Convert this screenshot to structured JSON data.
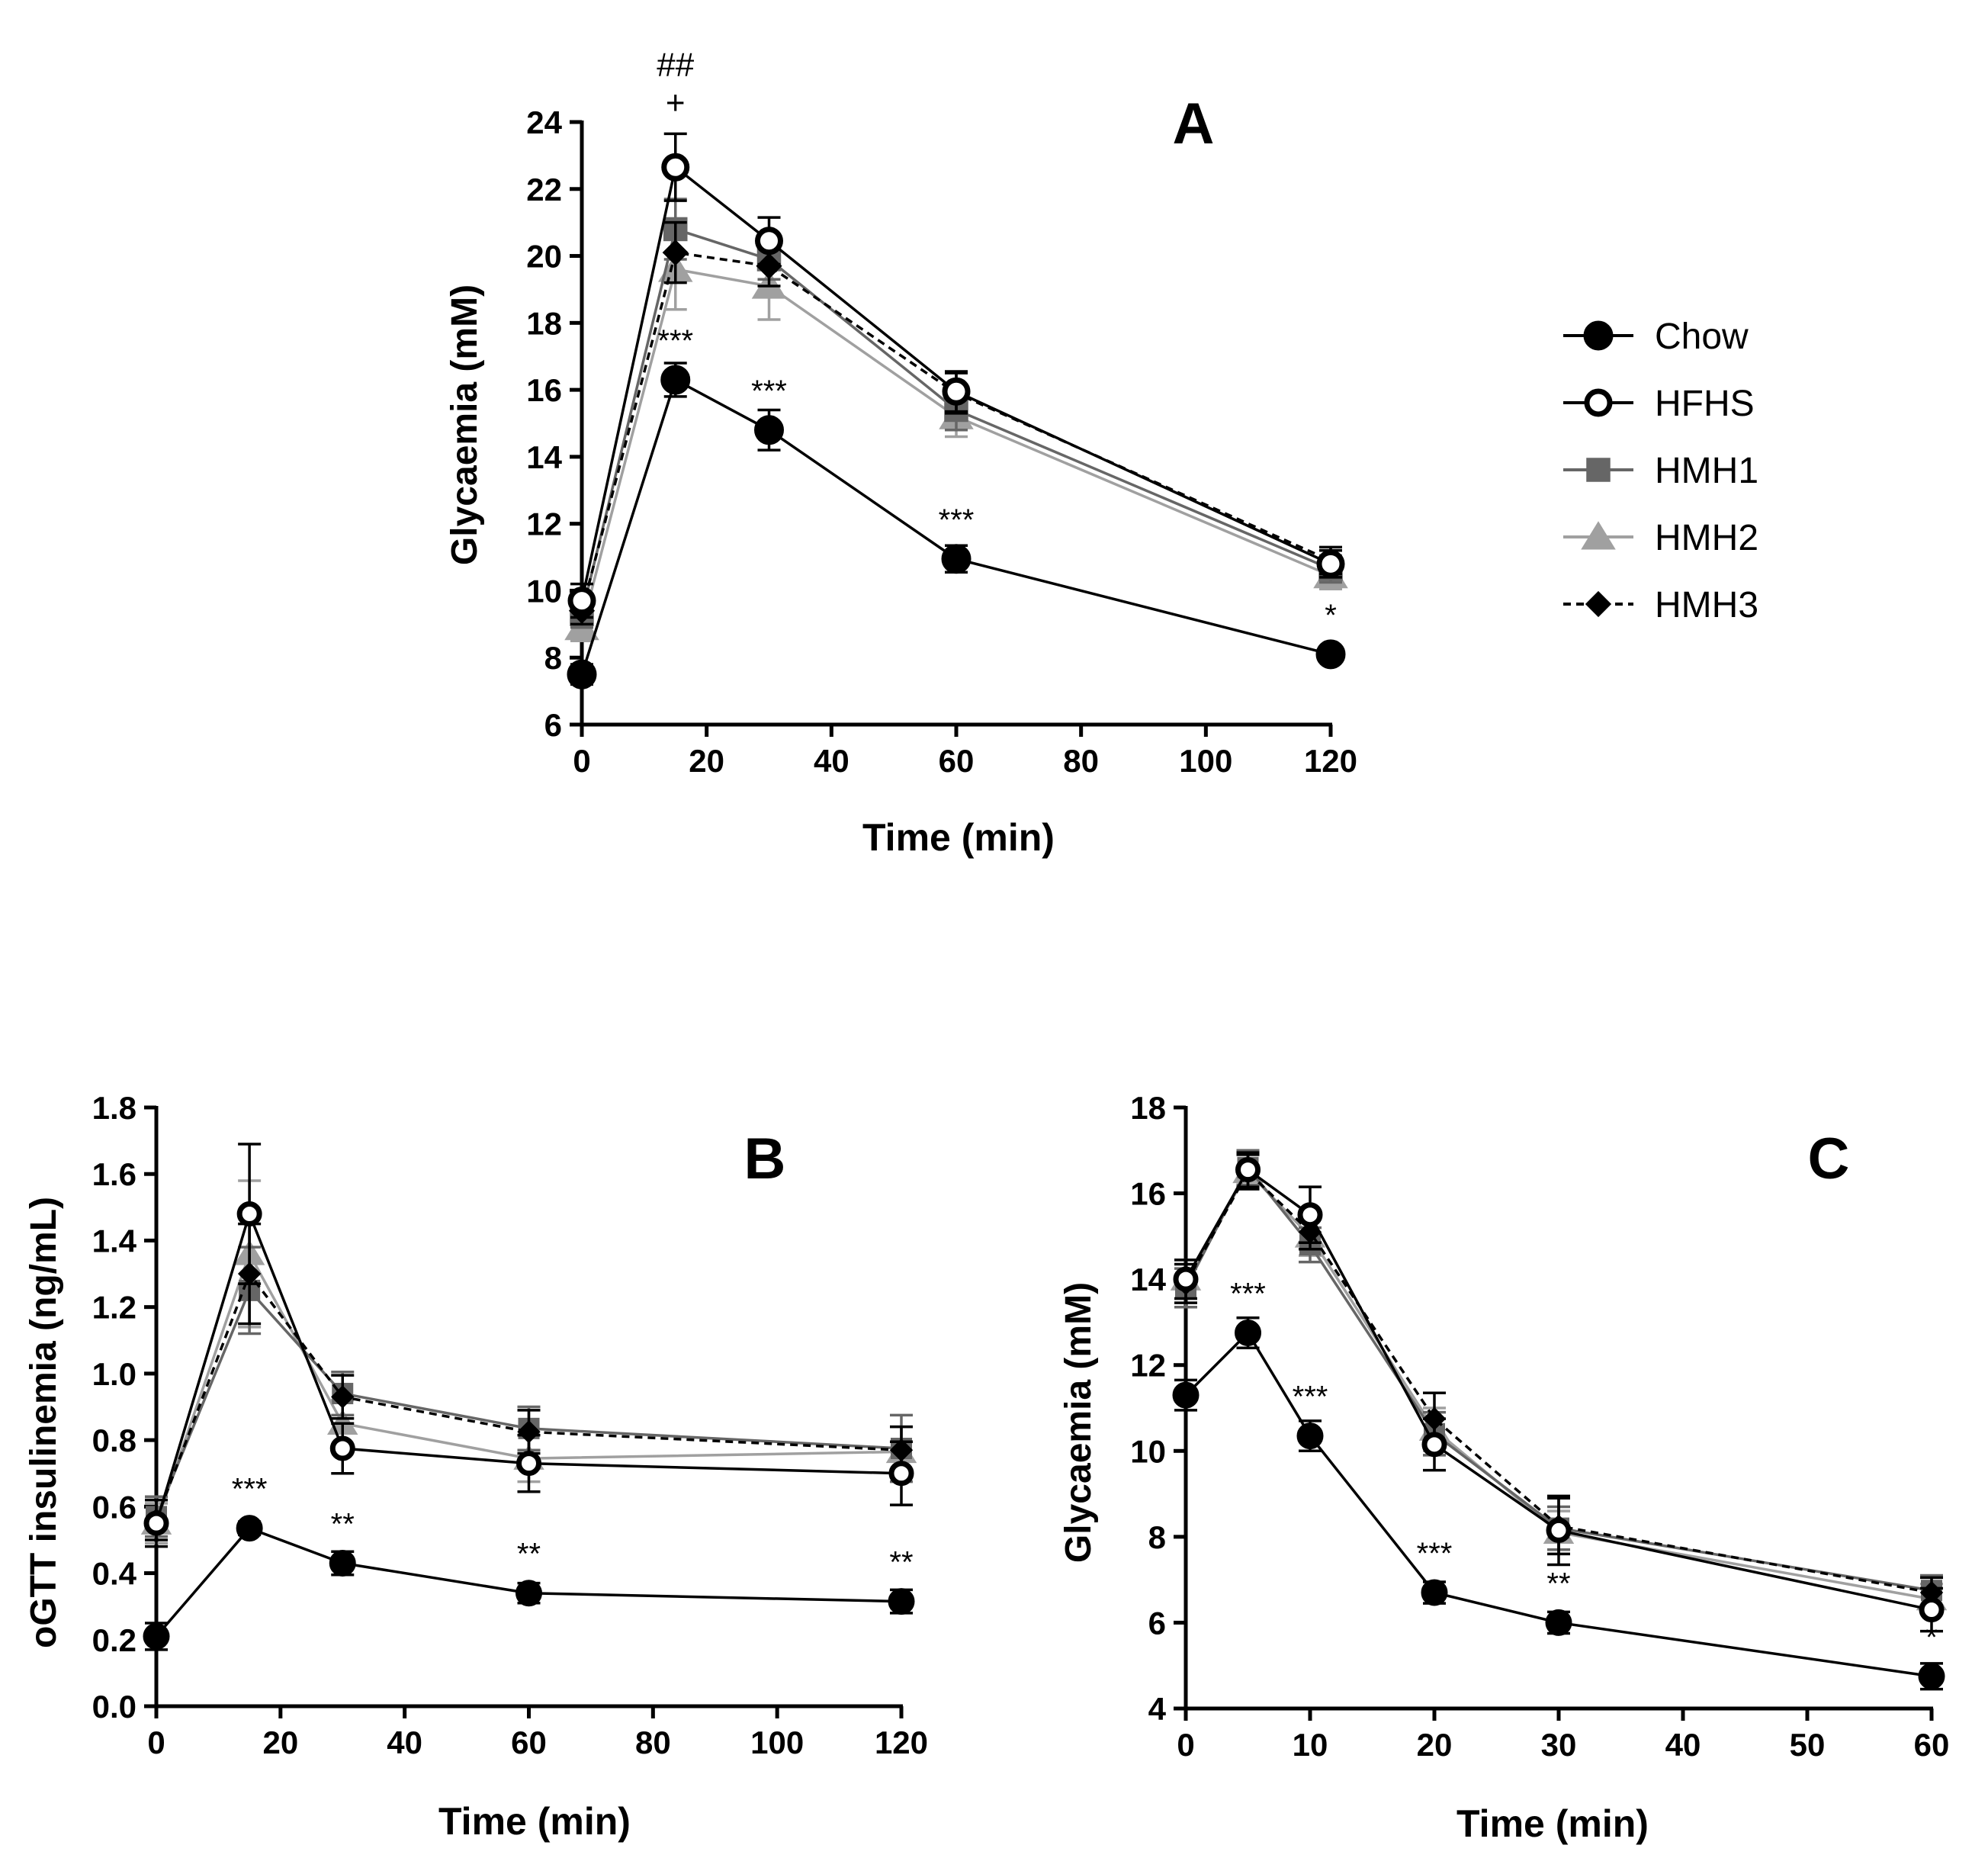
{
  "legend": {
    "entries": [
      {
        "name": "Chow",
        "marker": "filled-circle",
        "color": "#000000",
        "dash": false
      },
      {
        "name": "HFHS",
        "marker": "open-circle",
        "color": "#000000",
        "dash": false
      },
      {
        "name": "HMH1",
        "marker": "square",
        "color": "#666666",
        "dash": false
      },
      {
        "name": "HMH2",
        "marker": "triangle",
        "color": "#a0a0a0",
        "dash": false
      },
      {
        "name": "HMH3",
        "marker": "diamond",
        "color": "#000000",
        "dash": true
      }
    ]
  },
  "chart_data": [
    {
      "id": "A",
      "type": "line",
      "panel_label": "A",
      "xlabel": "Time (min)",
      "ylabel": "Glycaemia (mM)",
      "xlim": [
        0,
        120
      ],
      "ylim": [
        6,
        24
      ],
      "xticks": [
        0,
        20,
        40,
        60,
        80,
        100,
        120
      ],
      "yticks": [
        6,
        8,
        10,
        12,
        14,
        16,
        18,
        20,
        22,
        24
      ],
      "x": [
        0,
        15,
        30,
        60,
        120
      ],
      "series": [
        {
          "name": "Chow",
          "values": [
            7.5,
            16.3,
            14.8,
            10.95,
            8.1
          ],
          "err": [
            0.3,
            0.5,
            0.6,
            0.4,
            0.2
          ]
        },
        {
          "name": "HFHS",
          "values": [
            9.7,
            22.65,
            20.45,
            15.95,
            10.8
          ],
          "err": [
            0.5,
            1.0,
            0.7,
            0.6,
            0.4
          ]
        },
        {
          "name": "HMH1",
          "values": [
            9.3,
            20.8,
            19.9,
            15.4,
            10.65
          ],
          "err": [
            0.4,
            0.9,
            0.6,
            0.6,
            0.4
          ]
        },
        {
          "name": "HMH2",
          "values": [
            8.9,
            19.6,
            19.1,
            15.2,
            10.45
          ],
          "err": [
            0.4,
            1.2,
            1.0,
            0.6,
            0.4
          ]
        },
        {
          "name": "HMH3",
          "values": [
            9.4,
            20.1,
            19.7,
            15.9,
            10.9
          ],
          "err": [
            0.4,
            0.9,
            0.6,
            0.6,
            0.4
          ]
        }
      ],
      "annotations": [
        {
          "x": 15,
          "y": 16.3,
          "text": "***"
        },
        {
          "x": 30,
          "y": 14.8,
          "text": "***"
        },
        {
          "x": 60,
          "y": 10.95,
          "text": "***"
        },
        {
          "x": 120,
          "y": 8.1,
          "text": "*"
        }
      ],
      "top_annotations": [
        {
          "x": 15,
          "y": 22.65,
          "lines": [
            "##",
            "+"
          ]
        }
      ]
    },
    {
      "id": "B",
      "type": "line",
      "panel_label": "B",
      "xlabel": "Time (min)",
      "ylabel": "oGTT insulinemia (ng/mL)",
      "xlim": [
        0,
        120
      ],
      "ylim": [
        0,
        1.8
      ],
      "xticks": [
        0,
        20,
        40,
        60,
        80,
        100,
        120
      ],
      "yticks": [
        "0.0",
        "0.2",
        "0.4",
        "0.6",
        "0.8",
        "1.0",
        "1.2",
        "1.4",
        "1.6",
        "1.8"
      ],
      "x": [
        0,
        15,
        30,
        60,
        120
      ],
      "series": [
        {
          "name": "Chow",
          "values": [
            0.21,
            0.535,
            0.43,
            0.34,
            0.315
          ],
          "err": [
            0.04,
            0.02,
            0.035,
            0.03,
            0.035
          ]
        },
        {
          "name": "HFHS",
          "values": [
            0.55,
            1.48,
            0.775,
            0.73,
            0.7
          ],
          "err": [
            0.07,
            0.21,
            0.075,
            0.085,
            0.095
          ]
        },
        {
          "name": "HMH1",
          "values": [
            0.57,
            1.25,
            0.94,
            0.835,
            0.775
          ],
          "err": [
            0.06,
            0.13,
            0.065,
            0.065,
            0.1
          ]
        },
        {
          "name": "HMH2",
          "values": [
            0.55,
            1.36,
            0.85,
            0.745,
            0.765
          ],
          "err": [
            0.06,
            0.22,
            0.07,
            0.07,
            0.075
          ]
        },
        {
          "name": "HMH3",
          "values": [
            0.56,
            1.3,
            0.93,
            0.825,
            0.77
          ],
          "err": [
            0.06,
            0.15,
            0.065,
            0.065,
            0.07
          ]
        }
      ],
      "annotations": [
        {
          "x": 15,
          "y": 0.535,
          "text": "***"
        },
        {
          "x": 30,
          "y": 0.43,
          "text": "**"
        },
        {
          "x": 60,
          "y": 0.34,
          "text": "**"
        },
        {
          "x": 120,
          "y": 0.315,
          "text": "**"
        }
      ]
    },
    {
      "id": "C",
      "type": "line",
      "panel_label": "C",
      "xlabel": "Time (min)",
      "ylabel": "Glycaemia (mM)",
      "xlim": [
        0,
        60
      ],
      "ylim": [
        4,
        18
      ],
      "xticks": [
        0,
        10,
        20,
        30,
        40,
        50,
        60
      ],
      "yticks": [
        4,
        6,
        8,
        10,
        12,
        14,
        16,
        18
      ],
      "x": [
        0,
        5,
        10,
        20,
        30,
        60
      ],
      "series": [
        {
          "name": "Chow",
          "values": [
            11.3,
            12.75,
            10.35,
            6.7,
            6.0,
            4.75
          ],
          "err": [
            0.35,
            0.35,
            0.35,
            0.25,
            0.25,
            0.3
          ]
        },
        {
          "name": "HFHS",
          "values": [
            14.0,
            16.55,
            15.5,
            10.15,
            8.15,
            6.3
          ],
          "err": [
            0.45,
            0.4,
            0.65,
            0.6,
            0.8,
            0.5
          ]
        },
        {
          "name": "HMH1",
          "values": [
            13.8,
            16.6,
            14.8,
            10.4,
            8.2,
            6.75
          ],
          "err": [
            0.45,
            0.4,
            0.4,
            0.5,
            0.5,
            0.35
          ]
        },
        {
          "name": "HMH2",
          "values": [
            14.0,
            16.5,
            15.0,
            10.5,
            8.1,
            6.55
          ],
          "err": [
            0.45,
            0.4,
            0.45,
            0.5,
            0.5,
            0.35
          ]
        },
        {
          "name": "HMH3",
          "values": [
            13.9,
            16.5,
            15.1,
            10.75,
            8.25,
            6.7
          ],
          "err": [
            0.45,
            0.4,
            0.4,
            0.6,
            0.65,
            0.35
          ]
        }
      ],
      "annotations": [
        {
          "x": 5,
          "y": 12.75,
          "text": "***"
        },
        {
          "x": 10,
          "y": 10.35,
          "text": "***"
        },
        {
          "x": 20,
          "y": 6.7,
          "text": "***"
        },
        {
          "x": 30,
          "y": 6.0,
          "text": "**"
        },
        {
          "x": 60,
          "y": 4.75,
          "text": "*"
        }
      ]
    }
  ]
}
